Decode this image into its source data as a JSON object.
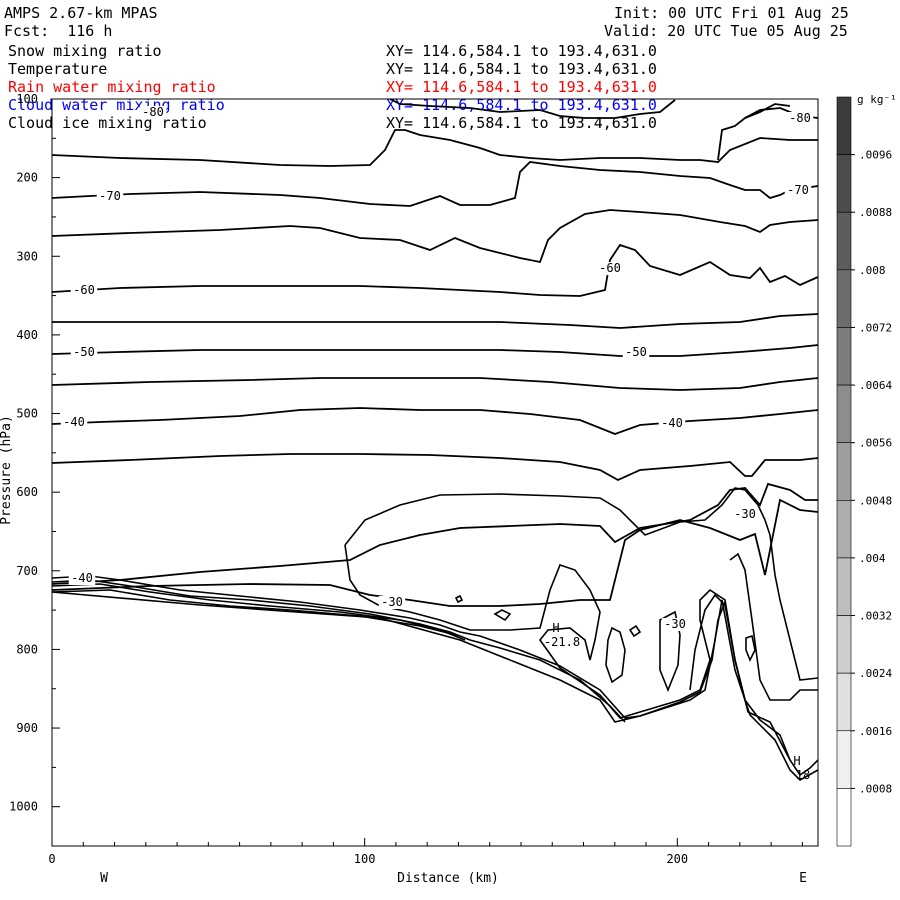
{
  "header": {
    "model": "AMPS 2.67-km MPAS",
    "fcst": "Fcst:  116 h",
    "init": "Init: 00 UTC Fri 01 Aug 25",
    "valid": "Valid: 20 UTC Tue 05 Aug 25"
  },
  "legend": [
    {
      "name": "Snow mixing ratio",
      "xy": "XY= 114.6,584.1 to 193.4,631.0",
      "color": "#000000"
    },
    {
      "name": "Temperature",
      "xy": "XY= 114.6,584.1 to 193.4,631.0",
      "color": "#000000"
    },
    {
      "name": "Rain water mixing ratio",
      "xy": "XY= 114.6,584.1 to 193.4,631.0",
      "color": "#ff0000"
    },
    {
      "name": "Cloud water mixing ratio",
      "xy": "XY= 114.6,584.1 to 193.4,631.0",
      "color": "#0000ff"
    },
    {
      "name": "Cloud ice mixing ratio",
      "xy": "XY= 114.6,584.1 to 193.4,631.0",
      "color": "#000000"
    }
  ],
  "chart_data": {
    "type": "cross-section contour",
    "xlabel": "Distance (km)",
    "ylabel": "Pressure (hPa)",
    "xlim": [
      0,
      245
    ],
    "ylim": [
      1050,
      100
    ],
    "x_ticks": [
      "0",
      "100",
      "200"
    ],
    "y_ticks": [
      "100",
      "200",
      "300",
      "400",
      "500",
      "600",
      "700",
      "800",
      "900",
      "1000"
    ],
    "left_end_label": "W",
    "right_end_label": "E",
    "colorbar": {
      "unit": "g kg⁻¹",
      "levels": [
        ".0096",
        ".0088",
        ".008",
        ".0072",
        ".0064",
        ".0056",
        ".0048",
        ".004",
        ".0032",
        ".0024",
        ".0016",
        ".0008"
      ]
    },
    "contour_labels": [
      "-80",
      "-80",
      "-70",
      "-70",
      "-60",
      "-60",
      "-50",
      "-50",
      "-40",
      "-40",
      "-30",
      "-30",
      "-30",
      "-40",
      "-30"
    ],
    "extrema": [
      {
        "kind": "H",
        "value": "-21.8"
      },
      {
        "kind": "H",
        "value": "18"
      }
    ],
    "temperature_isotherms_degC": [
      -80,
      -70,
      -60,
      -50,
      -40,
      -30
    ]
  }
}
